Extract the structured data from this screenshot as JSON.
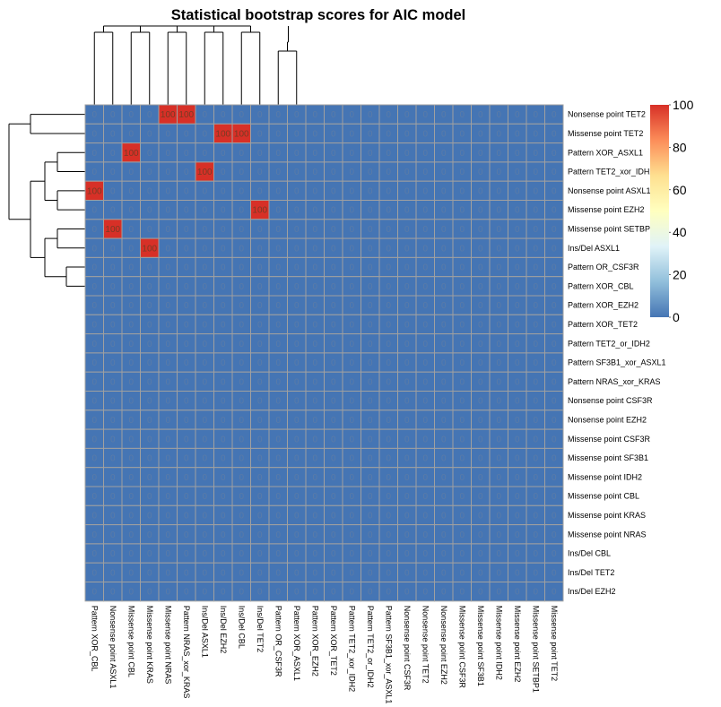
{
  "chart_data": {
    "type": "heatmap",
    "title": "Statistical bootstrap scores for AIC model",
    "rows": [
      "Nonsense point TET2",
      "Missense point TET2",
      "Pattern XOR_ASXL1",
      "Pattern TET2_xor_IDH2",
      "Nonsense point ASXL1",
      "Missense point EZH2",
      "Missense point SETBP1",
      "Ins/Del ASXL1",
      "Pattern OR_CSF3R",
      "Pattern XOR_CBL",
      "Pattern XOR_EZH2",
      "Pattern XOR_TET2",
      "Pattern TET2_or_IDH2",
      "Pattern SF3B1_xor_ASXL1",
      "Pattern NRAS_xor_KRAS",
      "Nonsense point CSF3R",
      "Nonsense point EZH2",
      "Missense point CSF3R",
      "Missense point SF3B1",
      "Missense point IDH2",
      "Missense point CBL",
      "Missense point KRAS",
      "Missense point NRAS",
      "Ins/Del CBL",
      "Ins/Del TET2",
      "Ins/Del EZH2"
    ],
    "columns": [
      "Pattern XOR_CBL",
      "Nonsense point ASXL1",
      "Missense point CBL",
      "Missense point KRAS",
      "Missense point NRAS",
      "Pattern NRAS_xor_KRAS",
      "Ins/Del ASXL1",
      "Ins/Del EZH2",
      "Ins/Del CBL",
      "Ins/Del TET2",
      "Pattern OR_CSF3R",
      "Pattern XOR_ASXL1",
      "Pattern XOR_EZH2",
      "Pattern XOR_TET2",
      "Pattern TET2_xor_IDH2",
      "Pattern TET2_or_IDH2",
      "Pattern SF3B1_xor_ASXL1",
      "Nonsense point CSF3R",
      "Nonsense point TET2",
      "Nonsense point EZH2",
      "Missense point CSF3R",
      "Missense point SF3B1",
      "Missense point IDH2",
      "Missense point EZH2",
      "Missense point SETBP1",
      "Missense point TET2"
    ],
    "values": [
      [
        0,
        0,
        0,
        0,
        100,
        100,
        0,
        0,
        0,
        0,
        0,
        0,
        0,
        0,
        0,
        0,
        0,
        0,
        0,
        0,
        0,
        0,
        0,
        0,
        0,
        0
      ],
      [
        0,
        0,
        0,
        0,
        0,
        0,
        0,
        100,
        100,
        0,
        0,
        0,
        0,
        0,
        0,
        0,
        0,
        0,
        0,
        0,
        0,
        0,
        0,
        0,
        0,
        0
      ],
      [
        0,
        0,
        100,
        0,
        0,
        0,
        0,
        0,
        0,
        0,
        0,
        0,
        0,
        0,
        0,
        0,
        0,
        0,
        0,
        0,
        0,
        0,
        0,
        0,
        0,
        0
      ],
      [
        0,
        0,
        0,
        0,
        0,
        0,
        100,
        0,
        0,
        0,
        0,
        0,
        0,
        0,
        0,
        0,
        0,
        0,
        0,
        0,
        0,
        0,
        0,
        0,
        0,
        0
      ],
      [
        100,
        0,
        0,
        0,
        0,
        0,
        0,
        0,
        0,
        0,
        0,
        0,
        0,
        0,
        0,
        0,
        0,
        0,
        0,
        0,
        0,
        0,
        0,
        0,
        0,
        0
      ],
      [
        0,
        0,
        0,
        0,
        0,
        0,
        0,
        0,
        0,
        100,
        0,
        0,
        0,
        0,
        0,
        0,
        0,
        0,
        0,
        0,
        0,
        0,
        0,
        0,
        0,
        0
      ],
      [
        0,
        100,
        0,
        0,
        0,
        0,
        0,
        0,
        0,
        0,
        0,
        0,
        0,
        0,
        0,
        0,
        0,
        0,
        0,
        0,
        0,
        0,
        0,
        0,
        0,
        0
      ],
      [
        0,
        0,
        0,
        100,
        0,
        0,
        0,
        0,
        0,
        0,
        0,
        0,
        0,
        0,
        0,
        0,
        0,
        0,
        0,
        0,
        0,
        0,
        0,
        0,
        0,
        0
      ],
      [
        0,
        0,
        0,
        0,
        0,
        0,
        0,
        0,
        0,
        0,
        0,
        0,
        0,
        0,
        0,
        0,
        0,
        0,
        0,
        0,
        0,
        0,
        0,
        0,
        0,
        0
      ],
      [
        0,
        0,
        0,
        0,
        0,
        0,
        0,
        0,
        0,
        0,
        0,
        0,
        0,
        0,
        0,
        0,
        0,
        0,
        0,
        0,
        0,
        0,
        0,
        0,
        0,
        0
      ],
      [
        0,
        0,
        0,
        0,
        0,
        0,
        0,
        0,
        0,
        0,
        0,
        0,
        0,
        0,
        0,
        0,
        0,
        0,
        0,
        0,
        0,
        0,
        0,
        0,
        0,
        0
      ],
      [
        0,
        0,
        0,
        0,
        0,
        0,
        0,
        0,
        0,
        0,
        0,
        0,
        0,
        0,
        0,
        0,
        0,
        0,
        0,
        0,
        0,
        0,
        0,
        0,
        0,
        0
      ],
      [
        0,
        0,
        0,
        0,
        0,
        0,
        0,
        0,
        0,
        0,
        0,
        0,
        0,
        0,
        0,
        0,
        0,
        0,
        0,
        0,
        0,
        0,
        0,
        0,
        0,
        0
      ],
      [
        0,
        0,
        0,
        0,
        0,
        0,
        0,
        0,
        0,
        0,
        0,
        0,
        0,
        0,
        0,
        0,
        0,
        0,
        0,
        0,
        0,
        0,
        0,
        0,
        0,
        0
      ],
      [
        0,
        0,
        0,
        0,
        0,
        0,
        0,
        0,
        0,
        0,
        0,
        0,
        0,
        0,
        0,
        0,
        0,
        0,
        0,
        0,
        0,
        0,
        0,
        0,
        0,
        0
      ],
      [
        0,
        0,
        0,
        0,
        0,
        0,
        0,
        0,
        0,
        0,
        0,
        0,
        0,
        0,
        0,
        0,
        0,
        0,
        0,
        0,
        0,
        0,
        0,
        0,
        0,
        0
      ],
      [
        0,
        0,
        0,
        0,
        0,
        0,
        0,
        0,
        0,
        0,
        0,
        0,
        0,
        0,
        0,
        0,
        0,
        0,
        0,
        0,
        0,
        0,
        0,
        0,
        0,
        0
      ],
      [
        0,
        0,
        0,
        0,
        0,
        0,
        0,
        0,
        0,
        0,
        0,
        0,
        0,
        0,
        0,
        0,
        0,
        0,
        0,
        0,
        0,
        0,
        0,
        0,
        0,
        0
      ],
      [
        0,
        0,
        0,
        0,
        0,
        0,
        0,
        0,
        0,
        0,
        0,
        0,
        0,
        0,
        0,
        0,
        0,
        0,
        0,
        0,
        0,
        0,
        0,
        0,
        0,
        0
      ],
      [
        0,
        0,
        0,
        0,
        0,
        0,
        0,
        0,
        0,
        0,
        0,
        0,
        0,
        0,
        0,
        0,
        0,
        0,
        0,
        0,
        0,
        0,
        0,
        0,
        0,
        0
      ],
      [
        0,
        0,
        0,
        0,
        0,
        0,
        0,
        0,
        0,
        0,
        0,
        0,
        0,
        0,
        0,
        0,
        0,
        0,
        0,
        0,
        0,
        0,
        0,
        0,
        0,
        0
      ],
      [
        0,
        0,
        0,
        0,
        0,
        0,
        0,
        0,
        0,
        0,
        0,
        0,
        0,
        0,
        0,
        0,
        0,
        0,
        0,
        0,
        0,
        0,
        0,
        0,
        0,
        0
      ],
      [
        0,
        0,
        0,
        0,
        0,
        0,
        0,
        0,
        0,
        0,
        0,
        0,
        0,
        0,
        0,
        0,
        0,
        0,
        0,
        0,
        0,
        0,
        0,
        0,
        0,
        0
      ],
      [
        0,
        0,
        0,
        0,
        0,
        0,
        0,
        0,
        0,
        0,
        0,
        0,
        0,
        0,
        0,
        0,
        0,
        0,
        0,
        0,
        0,
        0,
        0,
        0,
        0,
        0
      ],
      [
        0,
        0,
        0,
        0,
        0,
        0,
        0,
        0,
        0,
        0,
        0,
        0,
        0,
        0,
        0,
        0,
        0,
        0,
        0,
        0,
        0,
        0,
        0,
        0,
        0,
        0
      ],
      [
        0,
        0,
        0,
        0,
        0,
        0,
        0,
        0,
        0,
        0,
        0,
        0,
        0,
        0,
        0,
        0,
        0,
        0,
        0,
        0,
        0,
        0,
        0,
        0,
        0,
        0
      ]
    ],
    "color_scale": {
      "range": [
        0,
        100
      ],
      "ticks": [
        0,
        20,
        40,
        60,
        80,
        100
      ],
      "colors": [
        "#4575b4",
        "#91bfdb",
        "#e0f3f8",
        "#ffffbf",
        "#fee090",
        "#fc8d59",
        "#d73027"
      ]
    },
    "cell_colors": {
      "low": "#4575b4",
      "high": "#d73027"
    },
    "grid_color": "#a0a0a0",
    "show_cell_values": true,
    "legend_position": "right",
    "row_dendrogram": "left",
    "column_dendrogram": "top"
  }
}
